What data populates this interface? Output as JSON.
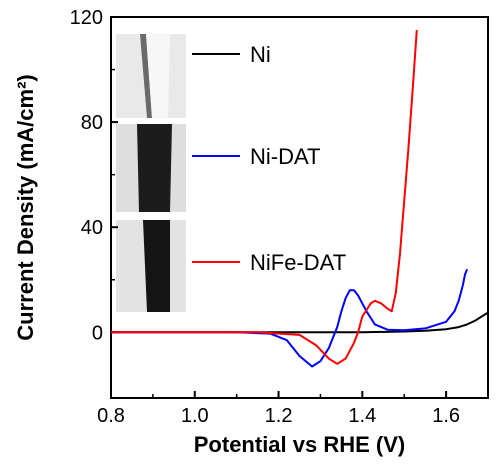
{
  "chart_data": {
    "type": "line",
    "xlabel": "Potential vs RHE (V)",
    "ylabel": "Current Density (mA/cm²)",
    "xlim": [
      0.8,
      1.7
    ],
    "ylim": [
      -25,
      120
    ],
    "x_ticks": [
      "0.8",
      "1.0",
      "1.2",
      "1.4",
      "1.6"
    ],
    "y_ticks": [
      "0",
      "40",
      "80",
      "120"
    ],
    "legend_position": "upper-left inside plot, with a photo of each electrode beside its entry",
    "series": [
      {
        "name": "Ni",
        "color": "#000000",
        "points": [
          [
            0.8,
            0
          ],
          [
            1.2,
            0
          ],
          [
            1.4,
            0
          ],
          [
            1.5,
            0.3
          ],
          [
            1.55,
            0.6
          ],
          [
            1.6,
            1.2
          ],
          [
            1.63,
            2
          ],
          [
            1.65,
            3
          ],
          [
            1.67,
            4.5
          ],
          [
            1.69,
            6.5
          ],
          [
            1.7,
            7.5
          ]
        ]
      },
      {
        "name": "Ni-DAT",
        "color": "#0000ff",
        "points": [
          [
            0.8,
            0
          ],
          [
            1.1,
            0
          ],
          [
            1.18,
            -0.5
          ],
          [
            1.22,
            -3
          ],
          [
            1.25,
            -9
          ],
          [
            1.28,
            -13
          ],
          [
            1.3,
            -11
          ],
          [
            1.32,
            -6
          ],
          [
            1.33,
            -2
          ],
          [
            1.34,
            2
          ],
          [
            1.35,
            8
          ],
          [
            1.36,
            13
          ],
          [
            1.37,
            16
          ],
          [
            1.38,
            16
          ],
          [
            1.39,
            14
          ],
          [
            1.41,
            8
          ],
          [
            1.43,
            3
          ],
          [
            1.46,
            1
          ],
          [
            1.5,
            0.8
          ],
          [
            1.55,
            1.5
          ],
          [
            1.6,
            4
          ],
          [
            1.62,
            8
          ],
          [
            1.63,
            12
          ],
          [
            1.64,
            18
          ],
          [
            1.645,
            22
          ],
          [
            1.65,
            24
          ]
        ]
      },
      {
        "name": "NiFe-DAT",
        "color": "#ff0000",
        "points": [
          [
            0.8,
            0
          ],
          [
            1.15,
            0
          ],
          [
            1.25,
            -1
          ],
          [
            1.29,
            -5
          ],
          [
            1.32,
            -10
          ],
          [
            1.34,
            -12
          ],
          [
            1.36,
            -10
          ],
          [
            1.38,
            -4
          ],
          [
            1.39,
            0
          ],
          [
            1.4,
            6
          ],
          [
            1.42,
            11
          ],
          [
            1.43,
            12
          ],
          [
            1.445,
            11
          ],
          [
            1.46,
            9
          ],
          [
            1.47,
            8
          ],
          [
            1.48,
            15
          ],
          [
            1.49,
            30
          ],
          [
            1.5,
            50
          ],
          [
            1.51,
            70
          ],
          [
            1.52,
            92
          ],
          [
            1.53,
            115
          ]
        ]
      }
    ]
  }
}
